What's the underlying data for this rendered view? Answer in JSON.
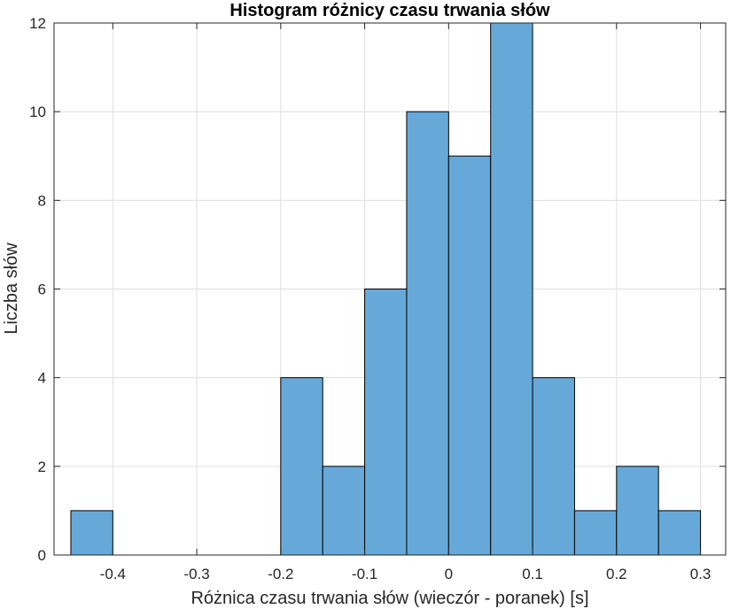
{
  "chart_data": {
    "type": "bar",
    "title": "Histogram różnicy czasu trwania słów",
    "xlabel": "Różnica czasu trwania słów (wieczór - poranek) [s]",
    "ylabel": "Liczba słów",
    "bin_edges": [
      -0.45,
      -0.4,
      -0.35,
      -0.3,
      -0.25,
      -0.2,
      -0.15,
      -0.1,
      -0.05,
      0,
      0.05,
      0.1,
      0.15,
      0.2,
      0.25,
      0.3
    ],
    "values": [
      1,
      0,
      0,
      0,
      0,
      4,
      2,
      6,
      10,
      9,
      12,
      4,
      1,
      2,
      1
    ],
    "xlim": [
      -0.47,
      0.33
    ],
    "ylim": [
      0,
      12
    ],
    "xticks": [
      "-0.4",
      "-0.3",
      "-0.2",
      "-0.1",
      "0",
      "0.1",
      "0.2",
      "0.3"
    ],
    "yticks": [
      "0",
      "2",
      "4",
      "6",
      "8",
      "10",
      "12"
    ],
    "grid": true,
    "bar_color": "#66a9d8",
    "bar_edge_color": "#000000"
  }
}
